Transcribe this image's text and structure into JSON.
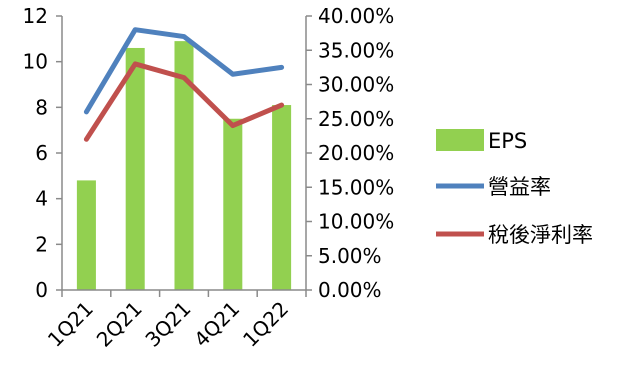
{
  "chart_data": {
    "type": "bar",
    "categories": [
      "1Q21",
      "2Q21",
      "3Q21",
      "4Q21",
      "1Q22"
    ],
    "ylim": [
      0,
      12
    ],
    "yticks": [
      0,
      2,
      4,
      6,
      8,
      10,
      12
    ],
    "y2lim": [
      0,
      0.4
    ],
    "y2ticks": [
      "0.00%",
      "5.00%",
      "10.00%",
      "15.00%",
      "20.00%",
      "25.00%",
      "30.00%",
      "35.00%",
      "40.00%"
    ],
    "legend_position": "right",
    "grid": false,
    "series": [
      {
        "name": "EPS",
        "type": "bar",
        "axis": "left",
        "color": "#92d050",
        "values": [
          4.8,
          10.6,
          10.9,
          7.5,
          8.1
        ]
      },
      {
        "name": "營益率",
        "type": "line",
        "axis": "right",
        "color": "#4f81bd",
        "values": [
          0.26,
          0.38,
          0.37,
          0.315,
          0.325
        ]
      },
      {
        "name": "稅後淨利率",
        "type": "line",
        "axis": "right",
        "color": "#c0504d",
        "values": [
          0.22,
          0.33,
          0.31,
          0.24,
          0.27
        ]
      }
    ]
  }
}
